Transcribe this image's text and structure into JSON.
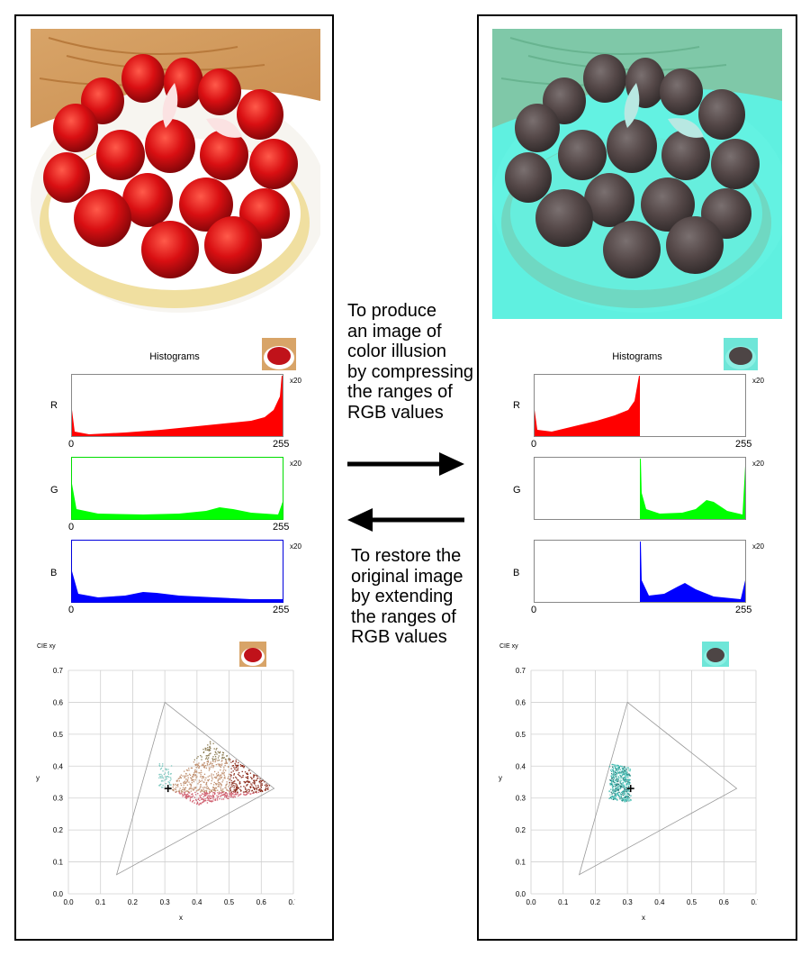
{
  "left_panel": {
    "histogram_title": "Histograms",
    "scale_label": "x20",
    "channels": [
      "R",
      "G",
      "B"
    ],
    "x_min_label": "0",
    "x_max_label": "255",
    "cie_title": "CIE xy",
    "cie_x_label": "x",
    "cie_y_label": "y",
    "cie_ticks": [
      "0.0",
      "0.1",
      "0.2",
      "0.3",
      "0.4",
      "0.5",
      "0.6",
      "0.7"
    ]
  },
  "right_panel": {
    "histogram_title": "Histograms",
    "scale_label": "x20",
    "channels": [
      "R",
      "G",
      "B"
    ],
    "x_min_label": "0",
    "x_max_label": "255",
    "cie_title": "CIE xy",
    "cie_x_label": "x",
    "cie_y_label": "y",
    "cie_ticks": [
      "0.0",
      "0.1",
      "0.2",
      "0.3",
      "0.4",
      "0.5",
      "0.6",
      "0.7"
    ]
  },
  "forward_text": [
    "To produce",
    "an image of",
    "color illusion",
    "by compressing",
    "the ranges of",
    "RGB values"
  ],
  "reverse_text": [
    "To restore the",
    "original image",
    "by extending",
    "the ranges of",
    "RGB values"
  ],
  "colors": {
    "red": "#ff0000",
    "green": "#00ff00",
    "blue": "#0000ff",
    "cyan_tint": "#4fe6d6"
  },
  "cie_data": {
    "left": {
      "white_point": [
        0.31,
        0.33
      ],
      "gamut": [
        [
          0.64,
          0.33
        ],
        [
          0.3,
          0.6
        ],
        [
          0.15,
          0.06
        ]
      ]
    },
    "right": {
      "white_point": [
        0.31,
        0.33
      ],
      "gamut": [
        [
          0.64,
          0.33
        ],
        [
          0.3,
          0.6
        ],
        [
          0.15,
          0.06
        ]
      ]
    }
  }
}
